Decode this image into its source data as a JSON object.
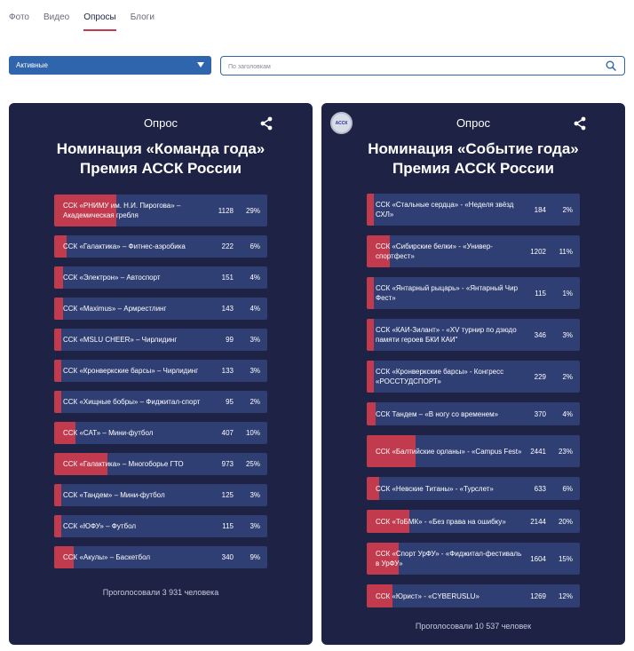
{
  "tabs": [
    {
      "label": "Фото",
      "active": false
    },
    {
      "label": "Видео",
      "active": false
    },
    {
      "label": "Опросы",
      "active": true
    },
    {
      "label": "Блоги",
      "active": false
    }
  ],
  "filter": {
    "selected": "Активные"
  },
  "search": {
    "placeholder": "По заголовкам",
    "value": ""
  },
  "colors": {
    "card_bg": "#1e2245",
    "option_bg": "#2f3e73",
    "fill": "#c23a4e",
    "accent": "#2f65ad"
  },
  "polls": [
    {
      "label": "Опрос",
      "title_line1": "Номинация «Команда года»",
      "title_line2": "Премия АССК России",
      "footer": "Проголосовали 3 931 человека",
      "options": [
        {
          "label": "ССК «РНИМУ им. Н.И. Пирогова» – Академическая гребля",
          "count": "1128",
          "pct": "29%",
          "fill": 0.29,
          "tall": true
        },
        {
          "label": "ССК «Галактика» – Фитнес-аэробика",
          "count": "222",
          "pct": "6%",
          "fill": 0.06,
          "tall": false
        },
        {
          "label": "ССК «Электрон» – Автоспорт",
          "count": "151",
          "pct": "4%",
          "fill": 0.04,
          "tall": false
        },
        {
          "label": "ССК «Maximus» – Армрестлинг",
          "count": "143",
          "pct": "4%",
          "fill": 0.04,
          "tall": false
        },
        {
          "label": "ССК «MSLU CHEER» – Чирлидинг",
          "count": "99",
          "pct": "3%",
          "fill": 0.03,
          "tall": false
        },
        {
          "label": "ССК «Кронверкские барсы» – Чирлидинг",
          "count": "133",
          "pct": "3%",
          "fill": 0.03,
          "tall": false
        },
        {
          "label": "ССК «Хищные бобры» – Фиджитал-спорт",
          "count": "95",
          "pct": "2%",
          "fill": 0.02,
          "tall": false
        },
        {
          "label": "ССК «САТ» – Мини-футбол",
          "count": "407",
          "pct": "10%",
          "fill": 0.1,
          "tall": false
        },
        {
          "label": "ССК «Галактика» – Многоборье ГТО",
          "count": "973",
          "pct": "25%",
          "fill": 0.25,
          "tall": false
        },
        {
          "label": "ССК «Тандем» – Мини-футбол",
          "count": "125",
          "pct": "3%",
          "fill": 0.03,
          "tall": false
        },
        {
          "label": "ССК «ЮФУ» – Футбол",
          "count": "115",
          "pct": "3%",
          "fill": 0.03,
          "tall": false
        },
        {
          "label": "ССК «Акулы» – Баскетбол",
          "count": "340",
          "pct": "9%",
          "fill": 0.09,
          "tall": false
        }
      ]
    },
    {
      "label": "Опрос",
      "logo": "АССК",
      "title_line1": "Номинация «Событие года»",
      "title_line2": "Премия АССК России",
      "footer": "Проголосовали 10 537 человек",
      "options": [
        {
          "label": "ССК «Стальные сердца» - «Неделя звёзд СХЛ»",
          "count": "184",
          "pct": "2%",
          "fill": 0.02,
          "tall": true
        },
        {
          "label": "ССК «Сибирские белки» - «Универ-спортфест»",
          "count": "1202",
          "pct": "11%",
          "fill": 0.11,
          "tall": true
        },
        {
          "label": "ССК «Янтарный рыцарь» - «Янтарный Чир Фест»",
          "count": "115",
          "pct": "1%",
          "fill": 0.01,
          "tall": true
        },
        {
          "label": "ССК «КАИ-Зилант» - «XV турнир по дзюдо памяти героев БКИ КАИ\"",
          "count": "346",
          "pct": "3%",
          "fill": 0.03,
          "tall": true
        },
        {
          "label": "ССК «Кронверкские барсы» - Конгресс «РОССТУДСПОРТ»",
          "count": "229",
          "pct": "2%",
          "fill": 0.02,
          "tall": true
        },
        {
          "label": "ССК Тандем – «В ногу со временем»",
          "count": "370",
          "pct": "4%",
          "fill": 0.04,
          "tall": false
        },
        {
          "label": "ССК «Балтийские орланы» - «Campus Fest»",
          "count": "2441",
          "pct": "23%",
          "fill": 0.23,
          "tall": true
        },
        {
          "label": "ССК «Невские Титаны» - «Турслет»",
          "count": "633",
          "pct": "6%",
          "fill": 0.06,
          "tall": false
        },
        {
          "label": "ССК «ТоБМК» - «Без права на ошибку»",
          "count": "2144",
          "pct": "20%",
          "fill": 0.2,
          "tall": false
        },
        {
          "label": "ССК «Спорт УрФУ» - «Фиджитал-фестиваль в УрФУ»",
          "count": "1604",
          "pct": "15%",
          "fill": 0.15,
          "tall": true
        },
        {
          "label": "ССК «Юрист» - «CYBERUSLU»",
          "count": "1269",
          "pct": "12%",
          "fill": 0.12,
          "tall": false
        }
      ]
    }
  ]
}
